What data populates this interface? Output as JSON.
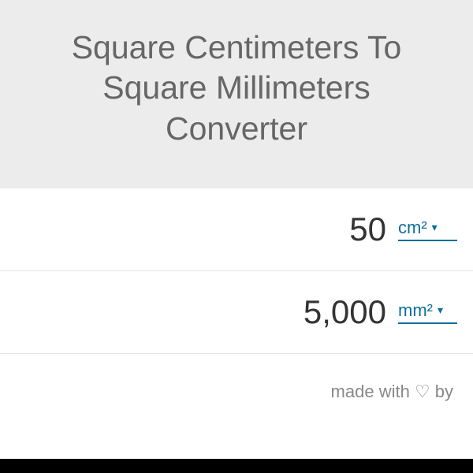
{
  "header": {
    "title": "Square Centimeters To Square Millimeters Converter"
  },
  "rows": [
    {
      "value": "50",
      "unit": "cm²"
    },
    {
      "value": "5,000",
      "unit": "mm²"
    }
  ],
  "footer": {
    "text": "made with ♡ by"
  },
  "colors": {
    "header_bg": "#ececec",
    "title_color": "#666666",
    "value_color": "#333333",
    "link_color": "#0d6e9a",
    "footer_color": "#888888",
    "border_color": "#e5e5e5"
  },
  "typography": {
    "title_fontsize": 41,
    "value_fontsize": 42,
    "unit_fontsize": 22,
    "footer_fontsize": 22
  }
}
